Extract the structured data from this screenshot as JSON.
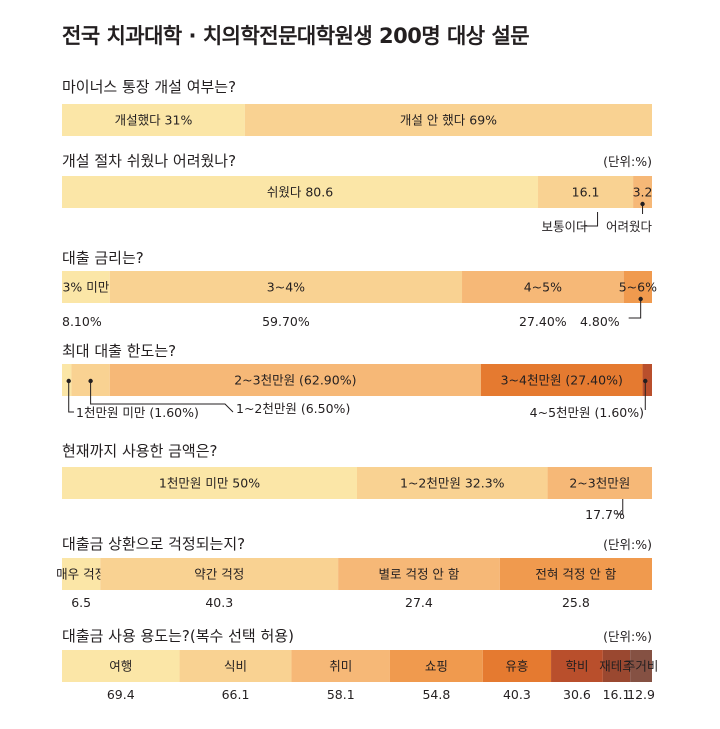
{
  "title": "전국 치과대학 · 치의학전문대학원생 200명 대상 설문",
  "colors": {
    "c1": "#fbe6a7",
    "c2": "#f9d292",
    "c3": "#f6b877",
    "c4": "#f09a4e",
    "c5": "#e57a30",
    "c6": "#b94f2c",
    "c7": "#9a4830",
    "c8": "#855143"
  },
  "chart_data": [
    {
      "type": "bar",
      "stacked": "horizontal-100",
      "title": "마이너스 통장 개설 여부는?",
      "unit": "",
      "segments": [
        {
          "label": "개설했다 31%",
          "value": 31,
          "color": "#fbe6a7"
        },
        {
          "label": "개설 안 했다 69%",
          "value": 69,
          "color": "#f9d292"
        }
      ]
    },
    {
      "type": "bar",
      "stacked": "horizontal-100",
      "title": "개설 절차 쉬웠나 어려웠나?",
      "unit": "(단위:%)",
      "segments": [
        {
          "label": "쉬웠다 80.6",
          "value": 80.6,
          "color": "#fbe6a7"
        },
        {
          "label": "16.1",
          "value": 16.1,
          "color": "#f9d292",
          "callout": "보통이다"
        },
        {
          "label": "3.2",
          "value": 3.2,
          "color": "#f6b877",
          "callout": "어려웠다"
        }
      ]
    },
    {
      "type": "bar",
      "stacked": "horizontal-100",
      "title": "대출 금리는?",
      "unit": "",
      "segments": [
        {
          "label": "3% 미만",
          "value": 8.1,
          "value_label": "8.10%",
          "color": "#fbe6a7"
        },
        {
          "label": "3~4%",
          "value": 59.7,
          "value_label": "59.70%",
          "color": "#f9d292"
        },
        {
          "label": "4~5%",
          "value": 27.4,
          "value_label": "27.40%",
          "color": "#f6b877"
        },
        {
          "label": "5~6%",
          "value": 4.8,
          "value_label": "4.80%",
          "color": "#f09a4e"
        }
      ]
    },
    {
      "type": "bar",
      "stacked": "horizontal-100",
      "title": "최대 대출 한도는?",
      "unit": "",
      "segments": [
        {
          "label": "",
          "value": 1.6,
          "color": "#fbe6a7",
          "callout": "1천만원 미만 (1.60%)"
        },
        {
          "label": "",
          "value": 6.5,
          "color": "#f9d292",
          "callout": "1~2천만원 (6.50%)"
        },
        {
          "label": "2~3천만원 (62.90%)",
          "value": 62.9,
          "color": "#f6b877"
        },
        {
          "label": "3~4천만원 (27.40%)",
          "value": 27.4,
          "color": "#e57a30"
        },
        {
          "label": "",
          "value": 1.6,
          "color": "#b94f2c",
          "callout": "4~5천만원 (1.60%)"
        }
      ]
    },
    {
      "type": "bar",
      "stacked": "horizontal-100",
      "title": "현재까지 사용한 금액은?",
      "unit": "",
      "segments": [
        {
          "label": "1천만원 미만  50%",
          "value": 50,
          "color": "#fbe6a7"
        },
        {
          "label": "1~2천만원  32.3%",
          "value": 32.3,
          "color": "#f9d292"
        },
        {
          "label": "2~3천만원",
          "value": 17.7,
          "value_label": "17.7%",
          "color": "#f6b877"
        }
      ]
    },
    {
      "type": "bar",
      "stacked": "horizontal-100",
      "title": "대출금 상환으로 걱정되는지?",
      "unit": "(단위:%)",
      "segments": [
        {
          "label": "매우 걱정",
          "value": 6.5,
          "value_label": "6.5",
          "color": "#fbe6a7"
        },
        {
          "label": "약간 걱정",
          "value": 40.3,
          "value_label": "40.3",
          "color": "#f9d292"
        },
        {
          "label": "별로 걱정 안 함",
          "value": 27.4,
          "value_label": "27.4",
          "color": "#f6b877"
        },
        {
          "label": "전혀 걱정 안 함",
          "value": 25.8,
          "value_label": "25.8",
          "color": "#f09a4e"
        }
      ]
    },
    {
      "type": "bar",
      "stacked": "horizontal-proportional",
      "title": "대출금 사용 용도는?(복수 선택 허용)",
      "unit": "(단위:%)",
      "segments": [
        {
          "label": "여행",
          "value": 69.4,
          "value_label": "69.4",
          "color": "#fbe6a7"
        },
        {
          "label": "식비",
          "value": 66.1,
          "value_label": "66.1",
          "color": "#f9d292"
        },
        {
          "label": "취미",
          "value": 58.1,
          "value_label": "58.1",
          "color": "#f6b877"
        },
        {
          "label": "쇼핑",
          "value": 54.8,
          "value_label": "54.8",
          "color": "#f09a4e"
        },
        {
          "label": "유흥",
          "value": 40.3,
          "value_label": "40.3",
          "color": "#e57a30"
        },
        {
          "label": "학비",
          "value": 30.6,
          "value_label": "30.6",
          "color": "#b94f2c"
        },
        {
          "label": "재테크",
          "value": 16.1,
          "value_label": "16.1",
          "color": "#9a4830"
        },
        {
          "label": "주거비",
          "value": 12.9,
          "value_label": "12.9",
          "color": "#855143"
        }
      ]
    }
  ]
}
